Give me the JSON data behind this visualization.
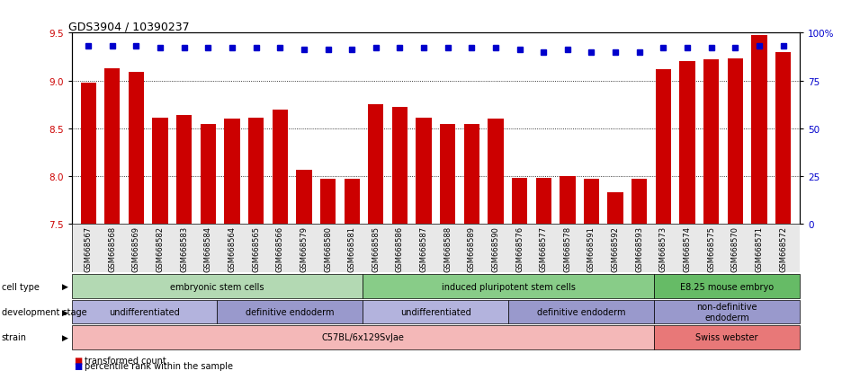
{
  "title": "GDS3904 / 10390237",
  "samples": [
    "GSM668567",
    "GSM668568",
    "GSM668569",
    "GSM668582",
    "GSM668583",
    "GSM668584",
    "GSM668564",
    "GSM668565",
    "GSM668566",
    "GSM668579",
    "GSM668580",
    "GSM668581",
    "GSM668585",
    "GSM668586",
    "GSM668587",
    "GSM668588",
    "GSM668589",
    "GSM668590",
    "GSM668576",
    "GSM668577",
    "GSM668578",
    "GSM668591",
    "GSM668592",
    "GSM668593",
    "GSM668573",
    "GSM668574",
    "GSM668575",
    "GSM668570",
    "GSM668571",
    "GSM668572"
  ],
  "bar_values": [
    8.98,
    9.13,
    9.09,
    8.61,
    8.64,
    8.55,
    8.6,
    8.61,
    8.7,
    8.07,
    7.97,
    7.97,
    8.75,
    8.72,
    8.61,
    8.55,
    8.55,
    8.6,
    7.98,
    7.98,
    8.0,
    7.97,
    7.83,
    7.97,
    9.12,
    9.2,
    9.22,
    9.23,
    9.47,
    9.3
  ],
  "percentile_values": [
    93,
    93,
    93,
    92,
    92,
    92,
    92,
    92,
    92,
    91,
    91,
    91,
    92,
    92,
    92,
    92,
    92,
    92,
    91,
    90,
    91,
    90,
    90,
    90,
    92,
    92,
    92,
    92,
    93,
    93
  ],
  "ylim_left": [
    7.5,
    9.5
  ],
  "ylim_right": [
    0,
    100
  ],
  "yticks_left": [
    7.5,
    8.0,
    8.5,
    9.0,
    9.5
  ],
  "yticks_right": [
    0,
    25,
    50,
    75,
    100
  ],
  "ytick_labels_right": [
    "0",
    "25",
    "50",
    "75",
    "100%"
  ],
  "bar_color": "#cc0000",
  "dot_color": "#0000cc",
  "cell_type_groups": [
    {
      "label": "embryonic stem cells",
      "start": 0,
      "end": 12,
      "color": "#b3d9b3"
    },
    {
      "label": "induced pluripotent stem cells",
      "start": 12,
      "end": 24,
      "color": "#88cc88"
    },
    {
      "label": "E8.25 mouse embryo",
      "start": 24,
      "end": 30,
      "color": "#66bb66"
    }
  ],
  "dev_stage_groups": [
    {
      "label": "undifferentiated",
      "start": 0,
      "end": 6,
      "color": "#b3b3dd"
    },
    {
      "label": "definitive endoderm",
      "start": 6,
      "end": 12,
      "color": "#9999cc"
    },
    {
      "label": "undifferentiated",
      "start": 12,
      "end": 18,
      "color": "#b3b3dd"
    },
    {
      "label": "definitive endoderm",
      "start": 18,
      "end": 24,
      "color": "#9999cc"
    },
    {
      "label": "non-definitive\nendoderm",
      "start": 24,
      "end": 30,
      "color": "#9999cc"
    }
  ],
  "strain_groups": [
    {
      "label": "C57BL/6x129SvJae",
      "start": 0,
      "end": 24,
      "color": "#f4b8b8"
    },
    {
      "label": "Swiss webster",
      "start": 24,
      "end": 30,
      "color": "#e87878"
    }
  ],
  "row_labels": [
    "cell type",
    "development stage",
    "strain"
  ],
  "legend_items": [
    {
      "color": "#cc0000",
      "label": "transformed count"
    },
    {
      "color": "#0000cc",
      "label": "percentile rank within the sample"
    }
  ],
  "gridline_values": [
    8.0,
    8.5,
    9.0
  ]
}
